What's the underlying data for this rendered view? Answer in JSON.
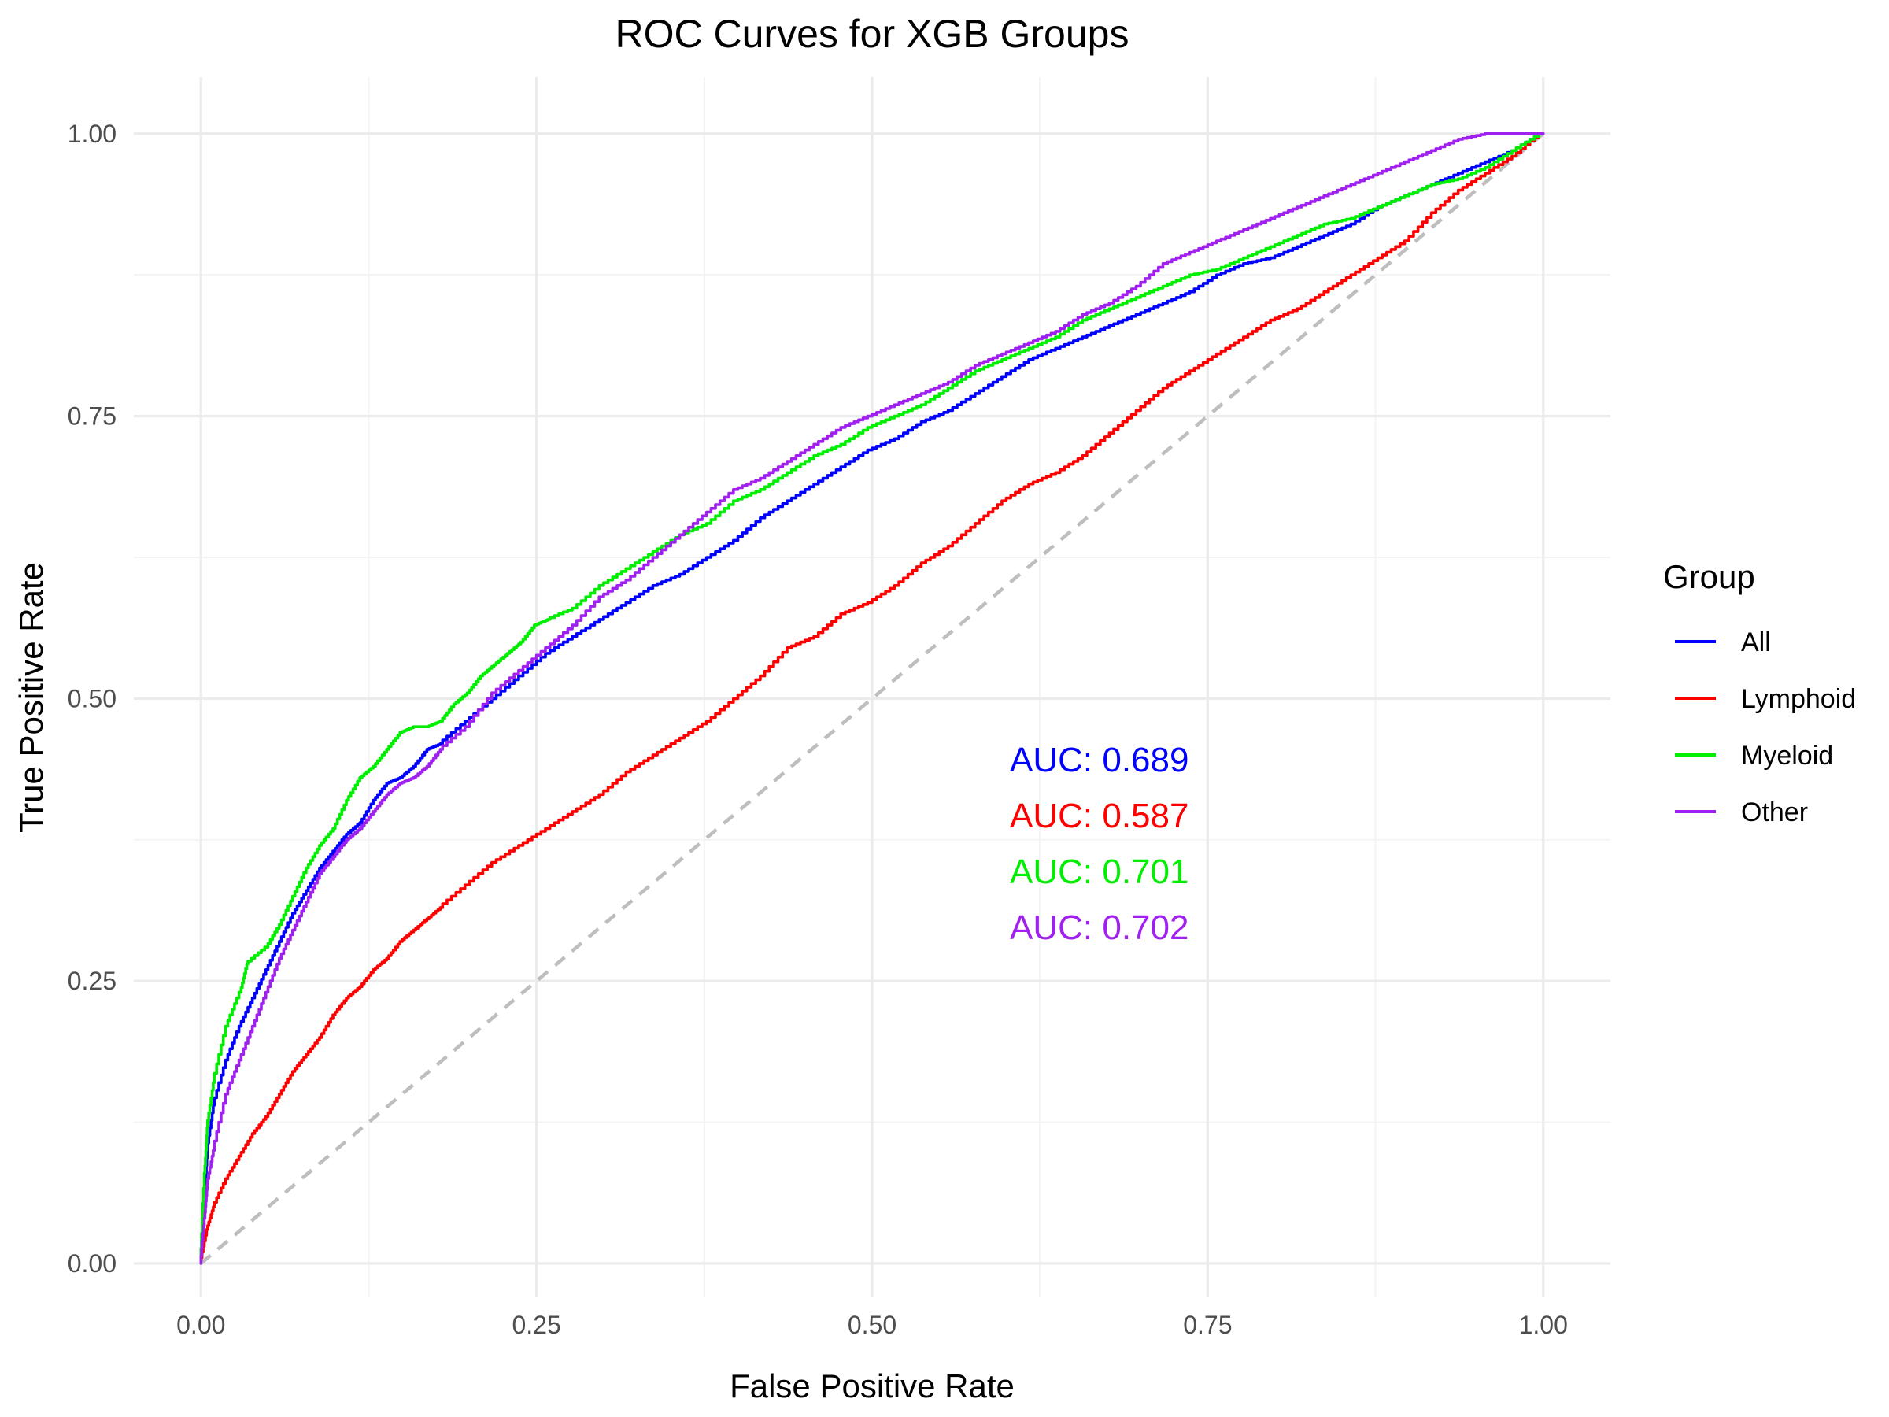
{
  "chart_data": {
    "type": "line",
    "title": "ROC Curves for XGB Groups",
    "xlabel": "False Positive Rate",
    "ylabel": "True Positive Rate",
    "xlim": [
      -0.05,
      1.05
    ],
    "ylim": [
      -0.03,
      1.05
    ],
    "x_ticks": [
      "0.00",
      "0.25",
      "0.50",
      "0.75",
      "1.00"
    ],
    "y_ticks": [
      "0.00",
      "0.25",
      "0.50",
      "0.75",
      "1.00"
    ],
    "grid": true,
    "legend": {
      "title": "Group",
      "position": "right"
    },
    "reference_line": {
      "from": [
        0,
        0
      ],
      "to": [
        1,
        1
      ],
      "style": "dashed",
      "color": "#bebebe"
    },
    "series": [
      {
        "name": "All",
        "color": "#0000ff",
        "auc_label": "AUC:  0.689",
        "points": [
          [
            0,
            0
          ],
          [
            0.003,
            0.06
          ],
          [
            0.005,
            0.1
          ],
          [
            0.01,
            0.14
          ],
          [
            0.02,
            0.18
          ],
          [
            0.03,
            0.21
          ],
          [
            0.04,
            0.235
          ],
          [
            0.05,
            0.26
          ],
          [
            0.06,
            0.285
          ],
          [
            0.07,
            0.31
          ],
          [
            0.08,
            0.33
          ],
          [
            0.09,
            0.35
          ],
          [
            0.1,
            0.365
          ],
          [
            0.11,
            0.38
          ],
          [
            0.12,
            0.39
          ],
          [
            0.13,
            0.41
          ],
          [
            0.14,
            0.425
          ],
          [
            0.15,
            0.43
          ],
          [
            0.16,
            0.44
          ],
          [
            0.17,
            0.455
          ],
          [
            0.18,
            0.46
          ],
          [
            0.2,
            0.48
          ],
          [
            0.22,
            0.5
          ],
          [
            0.24,
            0.52
          ],
          [
            0.26,
            0.54
          ],
          [
            0.28,
            0.555
          ],
          [
            0.3,
            0.57
          ],
          [
            0.32,
            0.585
          ],
          [
            0.34,
            0.6
          ],
          [
            0.36,
            0.61
          ],
          [
            0.38,
            0.625
          ],
          [
            0.4,
            0.64
          ],
          [
            0.42,
            0.66
          ],
          [
            0.44,
            0.675
          ],
          [
            0.46,
            0.69
          ],
          [
            0.48,
            0.705
          ],
          [
            0.5,
            0.72
          ],
          [
            0.52,
            0.73
          ],
          [
            0.54,
            0.745
          ],
          [
            0.56,
            0.755
          ],
          [
            0.58,
            0.77
          ],
          [
            0.6,
            0.785
          ],
          [
            0.62,
            0.8
          ],
          [
            0.64,
            0.81
          ],
          [
            0.66,
            0.82
          ],
          [
            0.68,
            0.83
          ],
          [
            0.7,
            0.84
          ],
          [
            0.72,
            0.85
          ],
          [
            0.74,
            0.86
          ],
          [
            0.76,
            0.875
          ],
          [
            0.78,
            0.885
          ],
          [
            0.8,
            0.89
          ],
          [
            0.82,
            0.9
          ],
          [
            0.84,
            0.91
          ],
          [
            0.86,
            0.92
          ],
          [
            0.88,
            0.935
          ],
          [
            0.9,
            0.945
          ],
          [
            0.92,
            0.955
          ],
          [
            0.94,
            0.965
          ],
          [
            0.96,
            0.975
          ],
          [
            0.98,
            0.985
          ],
          [
            1,
            1
          ]
        ]
      },
      {
        "name": "Lymphoid",
        "color": "#ff0000",
        "auc_label": "AUC:  0.587",
        "points": [
          [
            0,
            0
          ],
          [
            0.005,
            0.03
          ],
          [
            0.01,
            0.05
          ],
          [
            0.02,
            0.075
          ],
          [
            0.03,
            0.095
          ],
          [
            0.04,
            0.115
          ],
          [
            0.05,
            0.13
          ],
          [
            0.06,
            0.15
          ],
          [
            0.07,
            0.17
          ],
          [
            0.08,
            0.185
          ],
          [
            0.09,
            0.2
          ],
          [
            0.1,
            0.22
          ],
          [
            0.11,
            0.235
          ],
          [
            0.12,
            0.245
          ],
          [
            0.13,
            0.26
          ],
          [
            0.14,
            0.27
          ],
          [
            0.15,
            0.285
          ],
          [
            0.16,
            0.295
          ],
          [
            0.17,
            0.305
          ],
          [
            0.18,
            0.315
          ],
          [
            0.2,
            0.335
          ],
          [
            0.22,
            0.355
          ],
          [
            0.24,
            0.37
          ],
          [
            0.26,
            0.385
          ],
          [
            0.28,
            0.4
          ],
          [
            0.3,
            0.415
          ],
          [
            0.32,
            0.435
          ],
          [
            0.34,
            0.45
          ],
          [
            0.36,
            0.465
          ],
          [
            0.38,
            0.48
          ],
          [
            0.4,
            0.5
          ],
          [
            0.42,
            0.52
          ],
          [
            0.44,
            0.545
          ],
          [
            0.46,
            0.555
          ],
          [
            0.48,
            0.575
          ],
          [
            0.5,
            0.585
          ],
          [
            0.52,
            0.6
          ],
          [
            0.54,
            0.62
          ],
          [
            0.56,
            0.635
          ],
          [
            0.58,
            0.655
          ],
          [
            0.6,
            0.675
          ],
          [
            0.62,
            0.69
          ],
          [
            0.64,
            0.7
          ],
          [
            0.66,
            0.715
          ],
          [
            0.68,
            0.735
          ],
          [
            0.7,
            0.755
          ],
          [
            0.72,
            0.775
          ],
          [
            0.74,
            0.79
          ],
          [
            0.76,
            0.805
          ],
          [
            0.78,
            0.82
          ],
          [
            0.8,
            0.835
          ],
          [
            0.82,
            0.845
          ],
          [
            0.84,
            0.86
          ],
          [
            0.86,
            0.875
          ],
          [
            0.88,
            0.89
          ],
          [
            0.9,
            0.905
          ],
          [
            0.92,
            0.93
          ],
          [
            0.94,
            0.95
          ],
          [
            0.96,
            0.965
          ],
          [
            0.98,
            0.98
          ],
          [
            1,
            1
          ]
        ]
      },
      {
        "name": "Myeloid",
        "color": "#00ee00",
        "auc_label": "AUC:  0.701",
        "points": [
          [
            0,
            0
          ],
          [
            0.003,
            0.08
          ],
          [
            0.005,
            0.12
          ],
          [
            0.01,
            0.16
          ],
          [
            0.02,
            0.21
          ],
          [
            0.03,
            0.24
          ],
          [
            0.035,
            0.265
          ],
          [
            0.05,
            0.28
          ],
          [
            0.06,
            0.3
          ],
          [
            0.07,
            0.325
          ],
          [
            0.08,
            0.35
          ],
          [
            0.09,
            0.37
          ],
          [
            0.1,
            0.385
          ],
          [
            0.11,
            0.41
          ],
          [
            0.12,
            0.43
          ],
          [
            0.13,
            0.44
          ],
          [
            0.14,
            0.455
          ],
          [
            0.15,
            0.47
          ],
          [
            0.16,
            0.475
          ],
          [
            0.17,
            0.475
          ],
          [
            0.18,
            0.48
          ],
          [
            0.19,
            0.495
          ],
          [
            0.2,
            0.505
          ],
          [
            0.21,
            0.52
          ],
          [
            0.22,
            0.53
          ],
          [
            0.23,
            0.54
          ],
          [
            0.24,
            0.55
          ],
          [
            0.25,
            0.565
          ],
          [
            0.26,
            0.57
          ],
          [
            0.28,
            0.58
          ],
          [
            0.3,
            0.6
          ],
          [
            0.32,
            0.615
          ],
          [
            0.34,
            0.63
          ],
          [
            0.36,
            0.645
          ],
          [
            0.38,
            0.655
          ],
          [
            0.4,
            0.675
          ],
          [
            0.42,
            0.685
          ],
          [
            0.44,
            0.7
          ],
          [
            0.46,
            0.715
          ],
          [
            0.48,
            0.725
          ],
          [
            0.5,
            0.74
          ],
          [
            0.52,
            0.75
          ],
          [
            0.54,
            0.76
          ],
          [
            0.56,
            0.775
          ],
          [
            0.58,
            0.79
          ],
          [
            0.6,
            0.8
          ],
          [
            0.62,
            0.81
          ],
          [
            0.64,
            0.82
          ],
          [
            0.66,
            0.835
          ],
          [
            0.68,
            0.845
          ],
          [
            0.7,
            0.855
          ],
          [
            0.72,
            0.865
          ],
          [
            0.74,
            0.875
          ],
          [
            0.76,
            0.88
          ],
          [
            0.78,
            0.89
          ],
          [
            0.8,
            0.9
          ],
          [
            0.82,
            0.91
          ],
          [
            0.84,
            0.92
          ],
          [
            0.86,
            0.925
          ],
          [
            0.88,
            0.935
          ],
          [
            0.9,
            0.945
          ],
          [
            0.92,
            0.955
          ],
          [
            0.94,
            0.96
          ],
          [
            0.96,
            0.97
          ],
          [
            0.98,
            0.985
          ],
          [
            1,
            1
          ]
        ]
      },
      {
        "name": "Other",
        "color": "#a020f0",
        "auc_label": "AUC:  0.702",
        "points": [
          [
            0,
            0
          ],
          [
            0.003,
            0.04
          ],
          [
            0.005,
            0.07
          ],
          [
            0.01,
            0.1
          ],
          [
            0.02,
            0.15
          ],
          [
            0.03,
            0.18
          ],
          [
            0.04,
            0.21
          ],
          [
            0.05,
            0.24
          ],
          [
            0.06,
            0.27
          ],
          [
            0.07,
            0.295
          ],
          [
            0.08,
            0.32
          ],
          [
            0.09,
            0.345
          ],
          [
            0.1,
            0.36
          ],
          [
            0.11,
            0.375
          ],
          [
            0.12,
            0.385
          ],
          [
            0.13,
            0.4
          ],
          [
            0.14,
            0.415
          ],
          [
            0.15,
            0.425
          ],
          [
            0.16,
            0.43
          ],
          [
            0.17,
            0.44
          ],
          [
            0.18,
            0.455
          ],
          [
            0.2,
            0.475
          ],
          [
            0.22,
            0.505
          ],
          [
            0.24,
            0.525
          ],
          [
            0.26,
            0.545
          ],
          [
            0.28,
            0.565
          ],
          [
            0.3,
            0.59
          ],
          [
            0.32,
            0.605
          ],
          [
            0.34,
            0.625
          ],
          [
            0.36,
            0.645
          ],
          [
            0.38,
            0.665
          ],
          [
            0.4,
            0.685
          ],
          [
            0.42,
            0.695
          ],
          [
            0.44,
            0.71
          ],
          [
            0.46,
            0.725
          ],
          [
            0.48,
            0.74
          ],
          [
            0.5,
            0.75
          ],
          [
            0.52,
            0.76
          ],
          [
            0.54,
            0.77
          ],
          [
            0.56,
            0.78
          ],
          [
            0.58,
            0.795
          ],
          [
            0.6,
            0.805
          ],
          [
            0.62,
            0.815
          ],
          [
            0.64,
            0.825
          ],
          [
            0.66,
            0.84
          ],
          [
            0.68,
            0.85
          ],
          [
            0.7,
            0.865
          ],
          [
            0.72,
            0.885
          ],
          [
            0.74,
            0.895
          ],
          [
            0.76,
            0.905
          ],
          [
            0.78,
            0.915
          ],
          [
            0.8,
            0.925
          ],
          [
            0.82,
            0.935
          ],
          [
            0.84,
            0.945
          ],
          [
            0.86,
            0.955
          ],
          [
            0.88,
            0.965
          ],
          [
            0.9,
            0.975
          ],
          [
            0.92,
            0.985
          ],
          [
            0.94,
            0.995
          ],
          [
            0.96,
            1
          ],
          [
            0.98,
            1
          ],
          [
            1,
            1
          ]
        ]
      }
    ]
  }
}
